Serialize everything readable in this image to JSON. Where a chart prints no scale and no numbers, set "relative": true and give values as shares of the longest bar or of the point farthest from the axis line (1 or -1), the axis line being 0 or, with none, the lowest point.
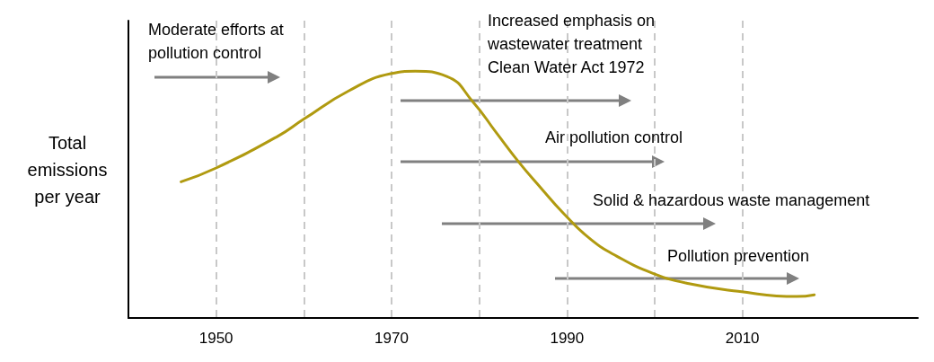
{
  "chart_data": {
    "type": "line",
    "relative": true,
    "ylabel": "Total\nemissions\nper year",
    "x": [
      1946,
      1950,
      1957,
      1960,
      1965.1,
      1969.9,
      1972.7,
      1976.3,
      1979.3,
      1981.9,
      1984.5,
      1987,
      1989.6,
      1992.7,
      1995.7,
      1999.8,
      2003.9,
      2009.5,
      2016.2,
      2018.2
    ],
    "series": [
      {
        "color": "#b09a10",
        "values": [
          0.552,
          0.608,
          0.736,
          0.806,
          0.92,
          0.99,
          1.0,
          0.979,
          0.875,
          0.753,
          0.632,
          0.528,
          0.424,
          0.319,
          0.25,
          0.181,
          0.139,
          0.108,
          0.087,
          0.094
        ]
      }
    ],
    "xlim": [
      1940,
      2030
    ],
    "xticks": [
      1950,
      {
        "value": 1960,
        "label": null
      },
      1970,
      {
        "value": 1980,
        "label": null
      },
      1990,
      {
        "value": 2000,
        "label": null
      },
      2010
    ],
    "grid": "x",
    "marker": "none",
    "line_style": "solid",
    "annotations": [
      "Moderate efforts at\npollution control",
      "Increased emphasis on\nwastewater treatment\nClean Water Act 1972",
      "Air pollution control",
      "Solid & hazardous waste management",
      "Pollution prevention"
    ]
  }
}
